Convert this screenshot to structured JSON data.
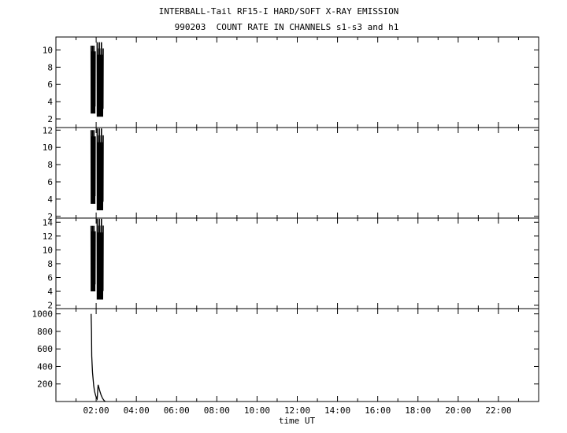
{
  "chart_data": {
    "type": "line",
    "title": "INTERBALL-Tail RF15-I HARD/SOFT X-RAY EMISSION",
    "subtitle": "990203  COUNT RATE IN CHANNELS s1-s3 and h1",
    "xlabel": "time UT",
    "x_range_hours": [
      0.0,
      24.0
    ],
    "x_ticks": [
      "02:00",
      "04:00",
      "06:00",
      "08:00",
      "10:00",
      "12:00",
      "14:00",
      "16:00",
      "18:00",
      "20:00",
      "22:00"
    ],
    "x_tick_hours": [
      2,
      4,
      6,
      8,
      10,
      12,
      14,
      16,
      18,
      20,
      22
    ],
    "panels": [
      {
        "name": "s1",
        "ylim": [
          1,
          11.5
        ],
        "yticks": [
          2,
          4,
          6,
          8,
          10
        ],
        "bursts": [
          {
            "start_h": 1.75,
            "end_h": 1.95,
            "min": 2.2,
            "max": 10.5
          },
          {
            "start_h": 2.05,
            "end_h": 2.35,
            "min": 1.8,
            "max": 10.9
          }
        ]
      },
      {
        "name": "s2",
        "ylim": [
          1.8,
          12.3
        ],
        "yticks": [
          2,
          4,
          6,
          8,
          10,
          12
        ],
        "bursts": [
          {
            "start_h": 1.75,
            "end_h": 1.95,
            "min": 3.0,
            "max": 12.0
          },
          {
            "start_h": 2.05,
            "end_h": 2.35,
            "min": 2.2,
            "max": 12.2
          }
        ]
      },
      {
        "name": "s3",
        "ylim": [
          1.5,
          14.6
        ],
        "yticks": [
          2,
          4,
          6,
          8,
          10,
          12,
          14
        ],
        "bursts": [
          {
            "start_h": 1.75,
            "end_h": 1.95,
            "min": 3.5,
            "max": 13.5
          },
          {
            "start_h": 2.05,
            "end_h": 2.35,
            "min": 2.2,
            "max": 14.5
          }
        ]
      },
      {
        "name": "h1",
        "ylim": [
          0,
          1060
        ],
        "yticks": [
          200,
          400,
          600,
          800,
          1000
        ],
        "curve_h": [
          1.75,
          1.77,
          1.78,
          1.8,
          1.82,
          1.85,
          1.88,
          1.92,
          1.96,
          2.0,
          2.05,
          2.1,
          2.18,
          2.25,
          2.32,
          2.4,
          2.45
        ],
        "curve_v": [
          1000,
          800,
          520,
          420,
          330,
          250,
          180,
          120,
          80,
          50,
          30,
          190,
          120,
          70,
          35,
          10,
          0
        ]
      }
    ]
  }
}
